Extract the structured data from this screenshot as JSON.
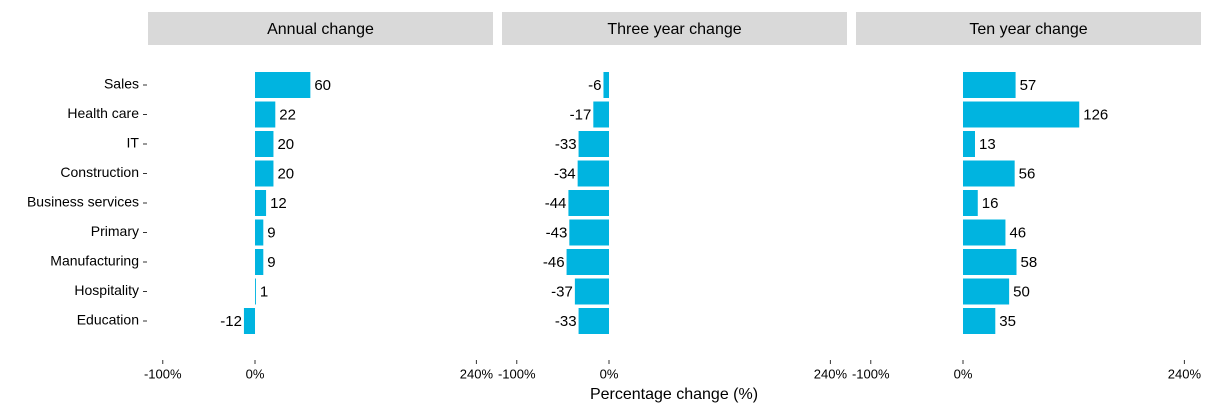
{
  "chart_data": {
    "type": "bar",
    "orientation": "horizontal",
    "categories": [
      "Sales",
      "Health care",
      "IT",
      "Construction",
      "Business services",
      "Primary",
      "Manufacturing",
      "Hospitality",
      "Education"
    ],
    "xlabel": "Percentage change (%)",
    "color": "#00b4e0",
    "facets": [
      {
        "title": "Annual change",
        "values": [
          60,
          22,
          20,
          20,
          12,
          9,
          9,
          1,
          -12
        ]
      },
      {
        "title": "Three year change",
        "values": [
          -6,
          -17,
          -33,
          -34,
          -44,
          -43,
          -46,
          -37,
          -33
        ]
      },
      {
        "title": "Ten year change",
        "values": [
          57,
          126,
          13,
          56,
          16,
          46,
          58,
          50,
          35
        ]
      }
    ],
    "xlim": [
      -116,
      258
    ],
    "xticks": [
      {
        "value": -100,
        "label": "-100%"
      },
      {
        "value": 0,
        "label": "0%"
      },
      {
        "value": 240,
        "label": "240%"
      }
    ]
  }
}
